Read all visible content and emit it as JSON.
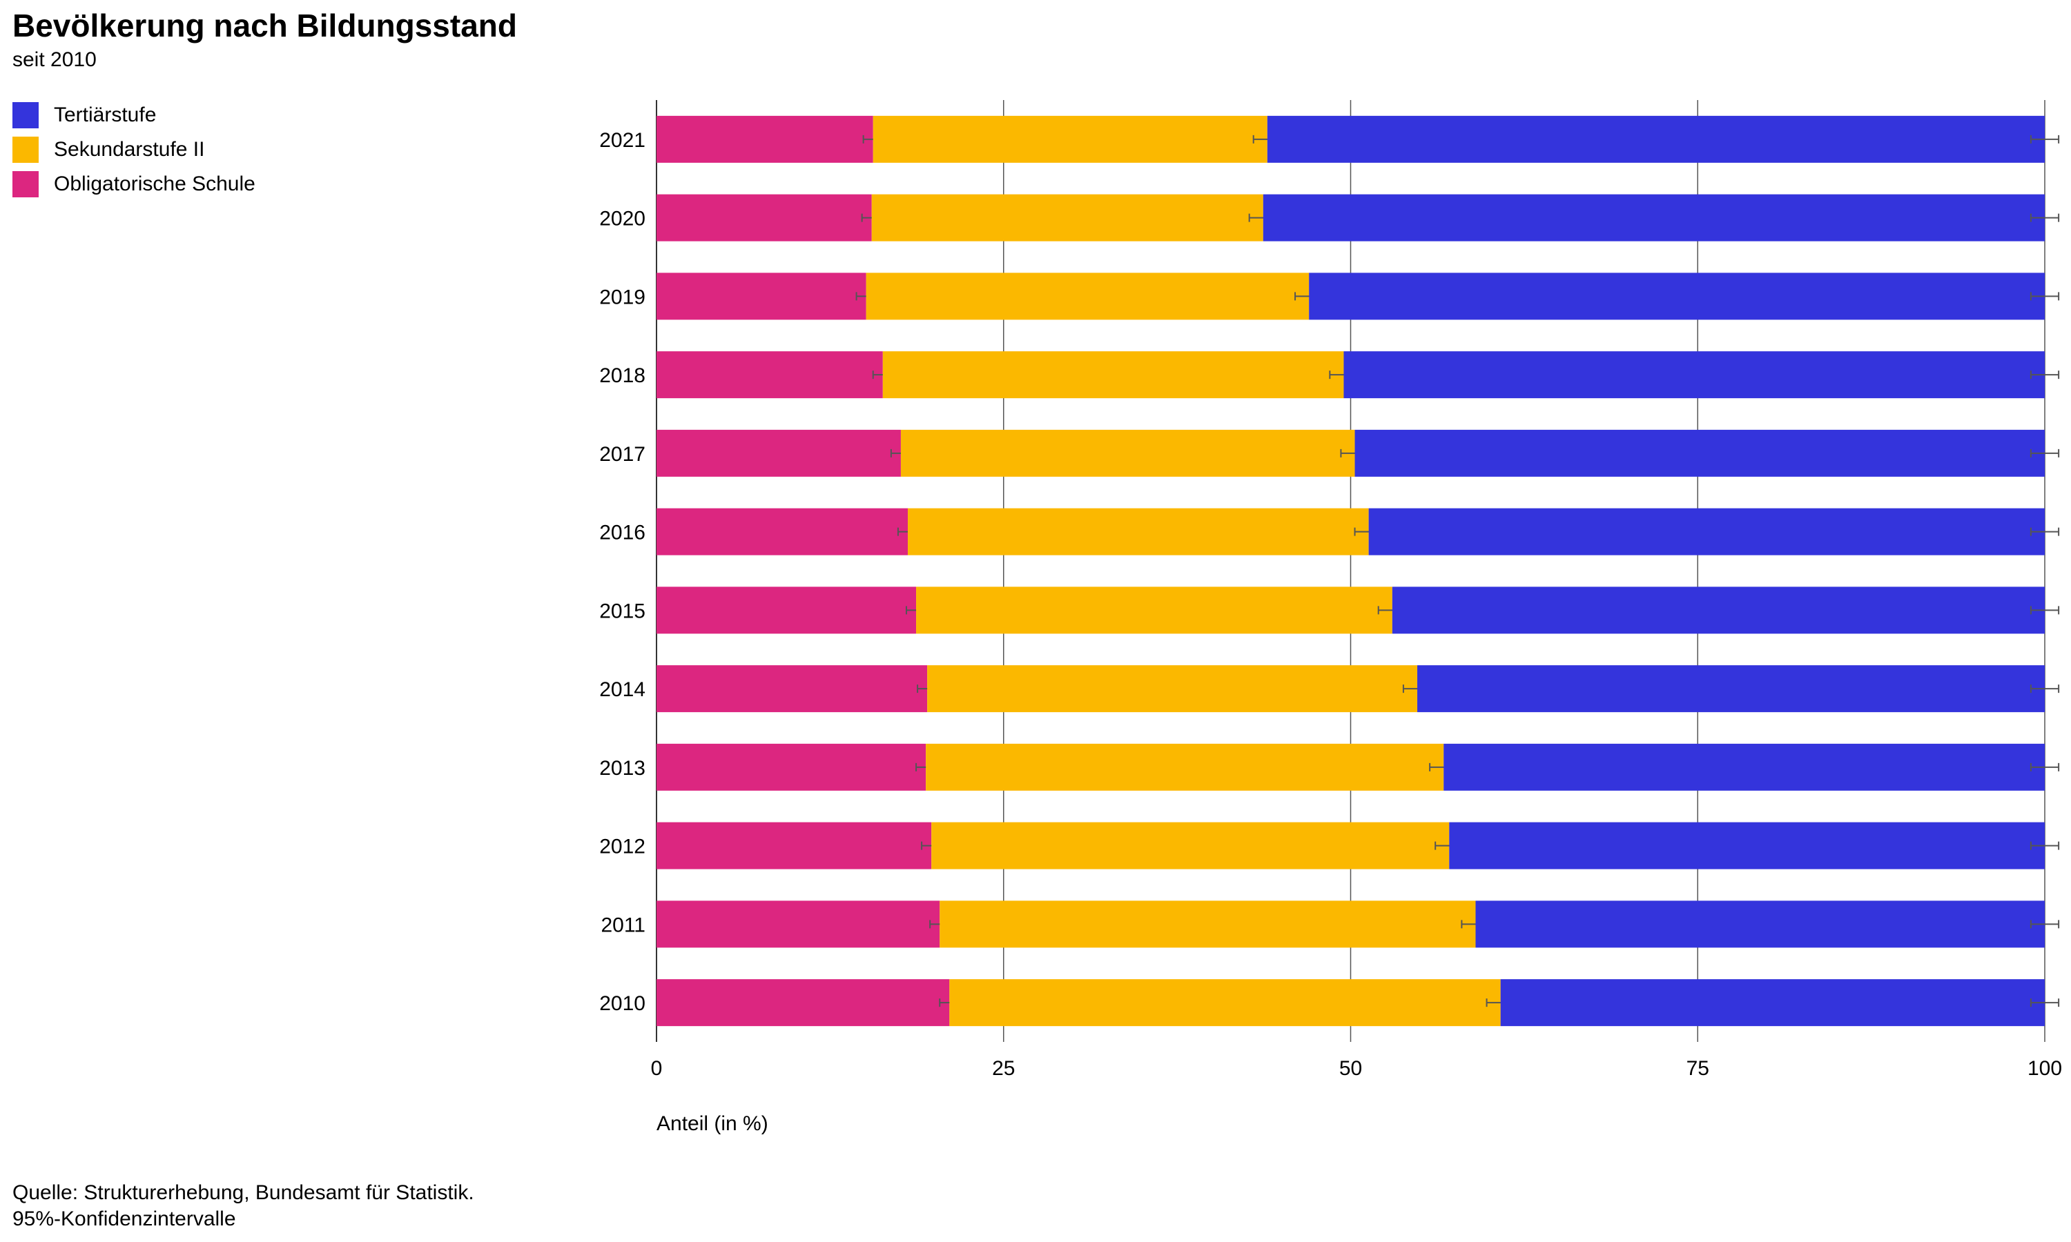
{
  "header": {
    "title": "Bevölkerung nach Bildungsstand",
    "subtitle": "seit 2010"
  },
  "legend": [
    {
      "label": "Tertiärstufe",
      "color": "#3434dc"
    },
    {
      "label": "Sekundarstufe II",
      "color": "#fbb800"
    },
    {
      "label": "Obligatorische Schule",
      "color": "#dc2680"
    }
  ],
  "footer": {
    "source": "Quelle: Strukturerhebung, Bundesamt für Statistik.",
    "note": "95%-Konfidenzintervalle"
  },
  "chart_data": {
    "type": "bar",
    "orientation": "horizontal",
    "stacked": true,
    "categories": [
      "2021",
      "2020",
      "2019",
      "2018",
      "2017",
      "2016",
      "2015",
      "2014",
      "2013",
      "2012",
      "2011",
      "2010"
    ],
    "series": [
      {
        "name": "Obligatorische Schule",
        "color": "#dc2680",
        "values": [
          15.6,
          15.5,
          15.1,
          16.3,
          17.6,
          18.1,
          18.7,
          19.5,
          19.4,
          19.8,
          20.4,
          21.1
        ]
      },
      {
        "name": "Sekundarstufe II",
        "color": "#fbb800",
        "values": [
          28.4,
          28.2,
          31.9,
          33.2,
          32.7,
          33.2,
          34.3,
          35.3,
          37.3,
          37.3,
          38.6,
          39.7
        ]
      },
      {
        "name": "Tertiärstufe",
        "color": "#3434dc",
        "values": [
          56.0,
          56.3,
          53.0,
          50.5,
          49.7,
          48.7,
          47.0,
          45.2,
          43.3,
          42.9,
          41.0,
          39.2
        ]
      }
    ],
    "xlabel": "Anteil (in %)",
    "xlim": [
      0,
      100
    ],
    "xticks": [
      "0",
      "25",
      "50",
      "75",
      "100"
    ],
    "grid": true,
    "error_bars": "95%-Konfidenzintervalle",
    "legend_position": "top-left"
  }
}
